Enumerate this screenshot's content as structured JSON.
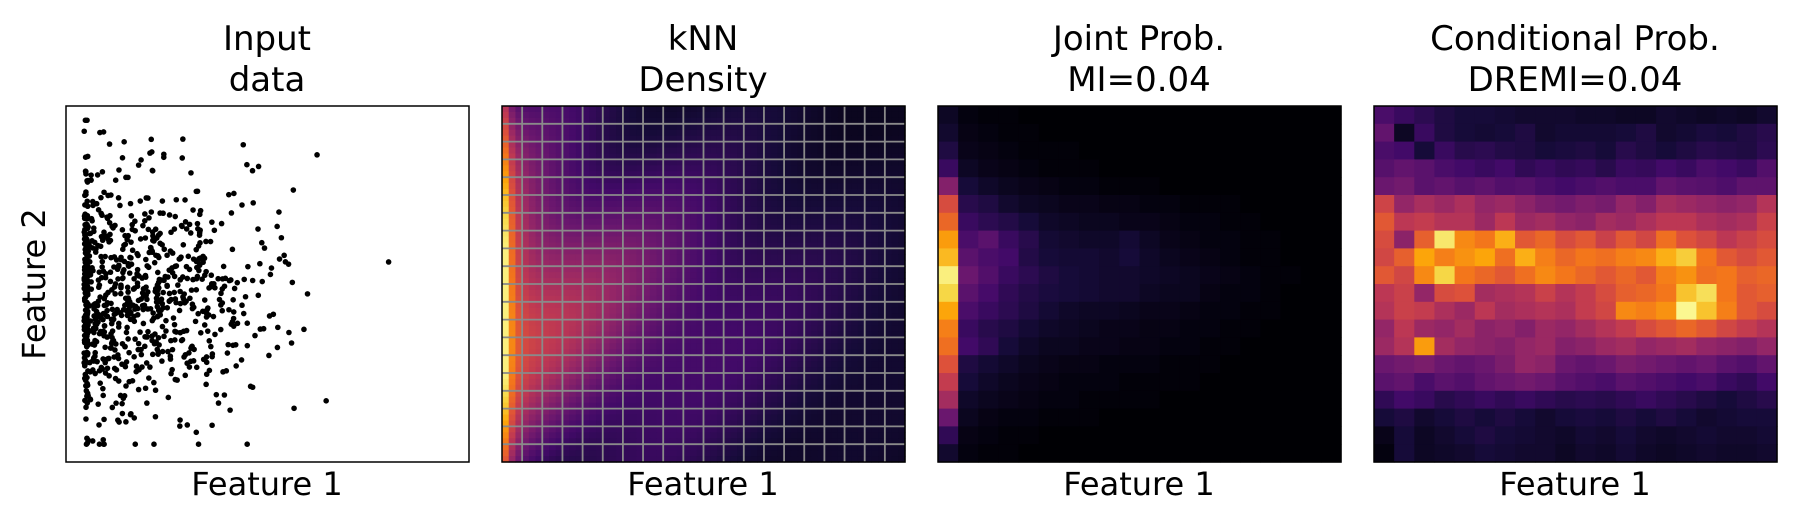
{
  "figure": {
    "ylabel": "Feature 2"
  },
  "chart_data": [
    {
      "type": "scatter",
      "title": [
        "Input",
        "data"
      ],
      "xlabel": "Feature 1",
      "ylabel": "Feature 2",
      "ticks": "none",
      "point_color": "#000000",
      "points_seed": 12345,
      "point_count": 900
    },
    {
      "type": "heatmap",
      "title": [
        "kNN",
        "Density"
      ],
      "xlabel": "Feature 1",
      "ticks": "none",
      "colormap": "inferno",
      "gridlines": true,
      "grid_color": "#8a8a8a",
      "grid_cols": 20,
      "grid_rows": 20,
      "fine_resolution": 60
    },
    {
      "type": "heatmap",
      "title": [
        "Joint Prob.",
        "MI=0.04"
      ],
      "xlabel": "Feature 1",
      "ticks": "none",
      "colormap": "inferno",
      "cols": 20,
      "rows": 20,
      "values": [
        [
          0.06,
          0.02,
          0.01,
          0.01,
          0.0,
          0.0,
          0.0,
          0.0,
          0.0,
          0.0,
          0.0,
          0.0,
          0.0,
          0.0,
          0.0,
          0.0,
          0.0,
          0.0,
          0.0,
          0.0
        ],
        [
          0.08,
          0.03,
          0.02,
          0.01,
          0.01,
          0.0,
          0.0,
          0.0,
          0.0,
          0.0,
          0.0,
          0.0,
          0.0,
          0.0,
          0.0,
          0.0,
          0.0,
          0.0,
          0.0,
          0.0
        ],
        [
          0.12,
          0.04,
          0.03,
          0.02,
          0.01,
          0.01,
          0.01,
          0.0,
          0.0,
          0.0,
          0.0,
          0.0,
          0.0,
          0.0,
          0.0,
          0.0,
          0.0,
          0.0,
          0.0,
          0.0
        ],
        [
          0.18,
          0.06,
          0.04,
          0.03,
          0.02,
          0.01,
          0.01,
          0.01,
          0.0,
          0.0,
          0.0,
          0.0,
          0.0,
          0.0,
          0.0,
          0.0,
          0.0,
          0.0,
          0.0,
          0.0
        ],
        [
          0.36,
          0.1,
          0.07,
          0.05,
          0.04,
          0.03,
          0.02,
          0.02,
          0.01,
          0.01,
          0.01,
          0.0,
          0.0,
          0.0,
          0.0,
          0.0,
          0.0,
          0.0,
          0.0,
          0.0
        ],
        [
          0.58,
          0.14,
          0.12,
          0.08,
          0.06,
          0.05,
          0.04,
          0.04,
          0.03,
          0.03,
          0.02,
          0.02,
          0.01,
          0.01,
          0.01,
          0.0,
          0.0,
          0.0,
          0.0,
          0.0
        ],
        [
          0.66,
          0.18,
          0.15,
          0.13,
          0.1,
          0.07,
          0.06,
          0.05,
          0.05,
          0.04,
          0.04,
          0.03,
          0.02,
          0.02,
          0.01,
          0.01,
          0.0,
          0.0,
          0.0,
          0.0
        ],
        [
          0.78,
          0.22,
          0.26,
          0.18,
          0.14,
          0.09,
          0.08,
          0.07,
          0.07,
          0.09,
          0.06,
          0.04,
          0.03,
          0.02,
          0.02,
          0.01,
          0.01,
          0.0,
          0.0,
          0.0
        ],
        [
          0.84,
          0.26,
          0.22,
          0.2,
          0.13,
          0.1,
          0.09,
          0.09,
          0.08,
          0.1,
          0.07,
          0.05,
          0.04,
          0.03,
          0.02,
          0.01,
          0.01,
          0.0,
          0.0,
          0.0
        ],
        [
          0.96,
          0.3,
          0.24,
          0.18,
          0.15,
          0.12,
          0.1,
          0.09,
          0.08,
          0.08,
          0.07,
          0.06,
          0.05,
          0.04,
          0.03,
          0.02,
          0.01,
          0.01,
          0.0,
          0.0
        ],
        [
          0.9,
          0.26,
          0.21,
          0.16,
          0.13,
          0.11,
          0.1,
          0.09,
          0.08,
          0.08,
          0.06,
          0.05,
          0.05,
          0.03,
          0.02,
          0.02,
          0.01,
          0.0,
          0.0,
          0.0
        ],
        [
          0.8,
          0.22,
          0.18,
          0.15,
          0.12,
          0.09,
          0.07,
          0.06,
          0.06,
          0.05,
          0.04,
          0.04,
          0.03,
          0.02,
          0.02,
          0.01,
          0.01,
          0.0,
          0.0,
          0.0
        ],
        [
          0.72,
          0.18,
          0.14,
          0.12,
          0.09,
          0.07,
          0.06,
          0.05,
          0.04,
          0.04,
          0.03,
          0.03,
          0.02,
          0.02,
          0.01,
          0.01,
          0.0,
          0.0,
          0.0,
          0.0
        ],
        [
          0.68,
          0.2,
          0.16,
          0.1,
          0.07,
          0.05,
          0.05,
          0.04,
          0.04,
          0.03,
          0.03,
          0.02,
          0.02,
          0.01,
          0.01,
          0.0,
          0.0,
          0.0,
          0.0,
          0.0
        ],
        [
          0.6,
          0.12,
          0.09,
          0.07,
          0.05,
          0.04,
          0.03,
          0.03,
          0.02,
          0.02,
          0.02,
          0.01,
          0.01,
          0.01,
          0.0,
          0.0,
          0.0,
          0.0,
          0.0,
          0.0
        ],
        [
          0.52,
          0.1,
          0.07,
          0.05,
          0.04,
          0.03,
          0.02,
          0.02,
          0.02,
          0.01,
          0.01,
          0.01,
          0.01,
          0.0,
          0.0,
          0.0,
          0.0,
          0.0,
          0.0,
          0.0
        ],
        [
          0.44,
          0.07,
          0.05,
          0.04,
          0.03,
          0.02,
          0.02,
          0.01,
          0.01,
          0.01,
          0.01,
          0.0,
          0.0,
          0.0,
          0.0,
          0.0,
          0.0,
          0.0,
          0.0,
          0.0
        ],
        [
          0.3,
          0.05,
          0.03,
          0.02,
          0.02,
          0.01,
          0.01,
          0.01,
          0.0,
          0.0,
          0.0,
          0.0,
          0.0,
          0.0,
          0.0,
          0.0,
          0.0,
          0.0,
          0.0,
          0.0
        ],
        [
          0.16,
          0.03,
          0.02,
          0.01,
          0.01,
          0.0,
          0.0,
          0.0,
          0.0,
          0.0,
          0.0,
          0.0,
          0.0,
          0.0,
          0.0,
          0.0,
          0.0,
          0.0,
          0.0,
          0.0
        ],
        [
          0.08,
          0.02,
          0.01,
          0.01,
          0.0,
          0.0,
          0.0,
          0.0,
          0.0,
          0.0,
          0.0,
          0.0,
          0.0,
          0.0,
          0.0,
          0.0,
          0.0,
          0.0,
          0.0,
          0.0
        ]
      ]
    },
    {
      "type": "heatmap",
      "title": [
        "Conditional Prob.",
        "DREMI=0.04"
      ],
      "xlabel": "Feature 1",
      "ticks": "none",
      "colormap": "inferno",
      "cols": 20,
      "rows": 20,
      "values": [
        [
          0.22,
          0.18,
          0.15,
          0.12,
          0.1,
          0.1,
          0.09,
          0.08,
          0.08,
          0.08,
          0.07,
          0.07,
          0.06,
          0.06,
          0.08,
          0.07,
          0.06,
          0.07,
          0.06,
          0.08
        ],
        [
          0.28,
          0.06,
          0.18,
          0.12,
          0.1,
          0.09,
          0.1,
          0.12,
          0.08,
          0.09,
          0.09,
          0.09,
          0.1,
          0.12,
          0.08,
          0.09,
          0.11,
          0.1,
          0.12,
          0.14
        ],
        [
          0.22,
          0.2,
          0.1,
          0.18,
          0.14,
          0.15,
          0.13,
          0.12,
          0.1,
          0.11,
          0.12,
          0.1,
          0.14,
          0.12,
          0.1,
          0.12,
          0.14,
          0.13,
          0.12,
          0.15
        ],
        [
          0.25,
          0.28,
          0.26,
          0.22,
          0.2,
          0.18,
          0.2,
          0.16,
          0.18,
          0.16,
          0.17,
          0.14,
          0.18,
          0.17,
          0.2,
          0.18,
          0.22,
          0.2,
          0.18,
          0.24
        ],
        [
          0.3,
          0.32,
          0.26,
          0.28,
          0.25,
          0.27,
          0.24,
          0.25,
          0.22,
          0.2,
          0.22,
          0.24,
          0.22,
          0.22,
          0.28,
          0.26,
          0.25,
          0.23,
          0.27,
          0.27
        ],
        [
          0.55,
          0.4,
          0.45,
          0.42,
          0.46,
          0.4,
          0.42,
          0.38,
          0.34,
          0.32,
          0.35,
          0.33,
          0.4,
          0.36,
          0.44,
          0.42,
          0.4,
          0.38,
          0.4,
          0.48
        ],
        [
          0.62,
          0.5,
          0.52,
          0.48,
          0.48,
          0.42,
          0.5,
          0.42,
          0.44,
          0.4,
          0.38,
          0.44,
          0.42,
          0.46,
          0.5,
          0.5,
          0.46,
          0.44,
          0.46,
          0.54
        ],
        [
          0.58,
          0.38,
          0.64,
          0.94,
          0.74,
          0.7,
          0.82,
          0.62,
          0.66,
          0.58,
          0.62,
          0.54,
          0.62,
          0.56,
          0.68,
          0.6,
          0.56,
          0.5,
          0.54,
          0.58
        ],
        [
          0.56,
          0.64,
          0.8,
          0.72,
          0.76,
          0.8,
          0.68,
          0.82,
          0.72,
          0.66,
          0.7,
          0.68,
          0.72,
          0.74,
          0.82,
          0.88,
          0.7,
          0.62,
          0.58,
          0.62
        ],
        [
          0.62,
          0.56,
          0.74,
          0.9,
          0.7,
          0.66,
          0.62,
          0.68,
          0.74,
          0.7,
          0.66,
          0.62,
          0.66,
          0.62,
          0.72,
          0.76,
          0.68,
          0.7,
          0.64,
          0.66
        ],
        [
          0.5,
          0.54,
          0.4,
          0.58,
          0.6,
          0.44,
          0.46,
          0.48,
          0.54,
          0.48,
          0.52,
          0.58,
          0.64,
          0.66,
          0.7,
          0.86,
          0.92,
          0.7,
          0.62,
          0.64
        ],
        [
          0.48,
          0.54,
          0.52,
          0.46,
          0.42,
          0.5,
          0.44,
          0.46,
          0.48,
          0.46,
          0.52,
          0.56,
          0.74,
          0.72,
          0.76,
          0.98,
          0.86,
          0.72,
          0.62,
          0.58
        ],
        [
          0.4,
          0.5,
          0.42,
          0.4,
          0.44,
          0.38,
          0.4,
          0.36,
          0.42,
          0.4,
          0.44,
          0.48,
          0.52,
          0.58,
          0.62,
          0.66,
          0.62,
          0.56,
          0.52,
          0.48
        ],
        [
          0.42,
          0.48,
          0.78,
          0.44,
          0.4,
          0.38,
          0.36,
          0.4,
          0.42,
          0.36,
          0.38,
          0.42,
          0.44,
          0.4,
          0.42,
          0.44,
          0.4,
          0.38,
          0.36,
          0.4
        ],
        [
          0.3,
          0.32,
          0.34,
          0.3,
          0.28,
          0.3,
          0.34,
          0.4,
          0.38,
          0.3,
          0.28,
          0.3,
          0.34,
          0.32,
          0.3,
          0.28,
          0.3,
          0.26,
          0.24,
          0.28
        ],
        [
          0.26,
          0.28,
          0.22,
          0.26,
          0.24,
          0.28,
          0.3,
          0.32,
          0.3,
          0.26,
          0.24,
          0.22,
          0.26,
          0.24,
          0.22,
          0.2,
          0.22,
          0.18,
          0.16,
          0.2
        ],
        [
          0.16,
          0.2,
          0.18,
          0.14,
          0.16,
          0.18,
          0.16,
          0.18,
          0.16,
          0.14,
          0.15,
          0.14,
          0.16,
          0.18,
          0.16,
          0.14,
          0.12,
          0.1,
          0.12,
          0.14
        ],
        [
          0.1,
          0.12,
          0.08,
          0.1,
          0.12,
          0.1,
          0.12,
          0.1,
          0.08,
          0.1,
          0.11,
          0.1,
          0.12,
          0.1,
          0.12,
          0.1,
          0.08,
          0.09,
          0.1,
          0.1
        ],
        [
          0.04,
          0.1,
          0.06,
          0.08,
          0.1,
          0.12,
          0.1,
          0.09,
          0.08,
          0.07,
          0.09,
          0.08,
          0.1,
          0.08,
          0.07,
          0.08,
          0.09,
          0.08,
          0.08,
          0.09
        ],
        [
          0.02,
          0.1,
          0.06,
          0.07,
          0.08,
          0.1,
          0.09,
          0.08,
          0.08,
          0.06,
          0.08,
          0.07,
          0.09,
          0.07,
          0.06,
          0.07,
          0.08,
          0.07,
          0.07,
          0.08
        ]
      ]
    }
  ]
}
